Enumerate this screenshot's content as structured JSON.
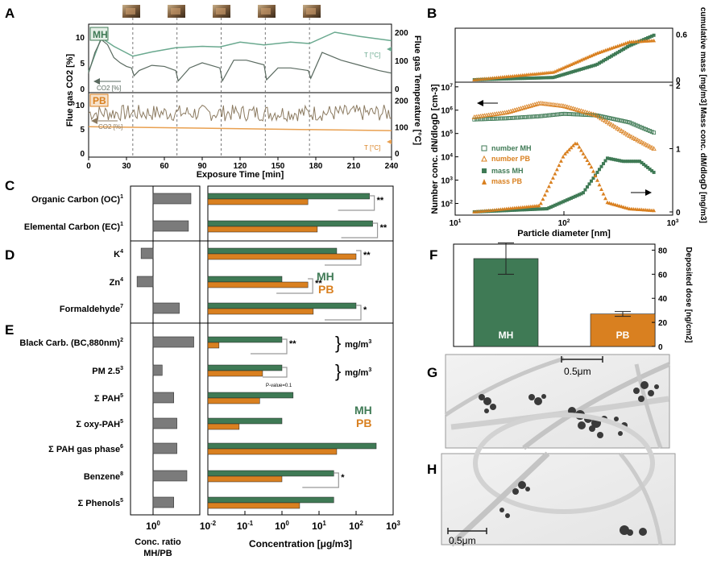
{
  "panel_letters": {
    "A": "A",
    "B": "B",
    "C": "C",
    "D": "D",
    "E": "E",
    "F": "F",
    "G": "G",
    "H": "H"
  },
  "colors": {
    "MH": "#3f7a55",
    "PB": "#d98020",
    "MH_temp": "#6aa98f",
    "PB_temp": "#e9a050",
    "flue": "#5a6a60",
    "flue_pb": "#8b7a60",
    "grey": "#7b7b7b"
  },
  "panel_A": {
    "ylabel_left": "Flue gas CO2 [%]",
    "ylabel_right": "Flue gas Temperature [°C]",
    "xlabel": "Exposure Time [min]",
    "xticks": [
      "0",
      "30",
      "60",
      "90",
      "120",
      "150",
      "180",
      "210",
      "240"
    ],
    "mh_label": "MH",
    "pb_label": "PB",
    "co2_label": "CO2 [%]",
    "temp_label": "T [°C]",
    "left_ticks_top": [
      "0",
      "5",
      "10"
    ],
    "left_ticks_bot": [
      "0",
      "5",
      "10"
    ],
    "right_ticks_top": [
      "0",
      "100",
      "200"
    ],
    "right_ticks_bot": [
      "0",
      "100",
      "200"
    ],
    "chart_data": {
      "type": "line",
      "xlim": [
        0,
        240
      ],
      "mh_refuel_times": [
        35,
        70,
        105,
        140,
        175
      ],
      "series": [
        {
          "name": "MH CO2",
          "x": [
            0,
            5,
            10,
            15,
            20,
            25,
            30,
            34,
            36,
            40,
            50,
            60,
            69,
            71,
            80,
            90,
            104,
            106,
            115,
            125,
            139,
            141,
            150,
            160,
            174,
            176,
            185,
            200,
            215,
            230,
            240
          ],
          "y": [
            3,
            7,
            9.5,
            8.5,
            6,
            5,
            4.3,
            4,
            2.5,
            3.5,
            4.5,
            4.3,
            3.5,
            1.5,
            4,
            5,
            4,
            1.5,
            5.5,
            5.5,
            4.6,
            1.7,
            4,
            4,
            3.5,
            2,
            7,
            5.5,
            4.5,
            3.5,
            3
          ]
        },
        {
          "name": "MH T",
          "x": [
            0,
            10,
            20,
            35,
            50,
            69,
            90,
            104,
            120,
            139,
            160,
            175,
            195,
            215,
            240
          ],
          "y": [
            60,
            180,
            150,
            115,
            130,
            145,
            150,
            148,
            165,
            155,
            165,
            160,
            200,
            185,
            170
          ]
        },
        {
          "name": "PB CO2",
          "y_mean": 8.5,
          "y_range": [
            6,
            10
          ]
        },
        {
          "name": "PB T",
          "x": [
            0,
            240
          ],
          "y": [
            100,
            85
          ]
        }
      ]
    }
  },
  "panel_B": {
    "top_ylabel": "cumulative mass [mg/m3]",
    "top_yticks": [
      "0",
      "0.6"
    ],
    "left_ylabel": "Number conc. dN/dlogD [cm-3]",
    "right_ylabel": "Mass conc. dM/dlogD [mg/m3]",
    "xlabel": "Particle diameter [nm]",
    "xticks": [
      "10",
      "100",
      "1000"
    ],
    "left_ticks": [
      "10",
      "10",
      "10",
      "10",
      "10",
      "10"
    ],
    "left_exps": [
      "2",
      "3",
      "4",
      "5",
      "6",
      "7"
    ],
    "right_ticks": [
      "0",
      "1",
      "2"
    ],
    "legend": [
      "number MH",
      "number PB",
      "mass MH",
      "mass PB"
    ],
    "chart_data": {
      "type": "scatter",
      "x_scale": "log",
      "xlim": [
        10,
        1000
      ],
      "series": [
        {
          "name": "number MH",
          "x": [
            15,
            30,
            60,
            100,
            200,
            400,
            700
          ],
          "y": [
            400000,
            450000,
            550000,
            700000,
            600000,
            300000,
            100000
          ]
        },
        {
          "name": "number PB",
          "x": [
            15,
            30,
            60,
            100,
            200,
            400,
            700
          ],
          "y": [
            500000,
            800000,
            2000000,
            1500000,
            600000,
            80000,
            20000
          ]
        },
        {
          "name": "mass MH",
          "x": [
            15,
            70,
            150,
            250,
            350,
            500,
            700
          ],
          "y": [
            0,
            0.05,
            0.3,
            0.85,
            0.8,
            0.8,
            0.6
          ]
        },
        {
          "name": "mass PB",
          "x": [
            15,
            60,
            100,
            130,
            180,
            250,
            400,
            700
          ],
          "y": [
            0,
            0.1,
            0.9,
            1.1,
            0.7,
            0.15,
            0.05,
            0.02
          ]
        },
        {
          "name": "cumulative MH",
          "x": [
            15,
            80,
            200,
            400,
            700
          ],
          "y": [
            0,
            0.03,
            0.2,
            0.45,
            0.6
          ]
        },
        {
          "name": "cumulative PB",
          "x": [
            15,
            80,
            200,
            400,
            700
          ],
          "y": [
            0,
            0.1,
            0.35,
            0.5,
            0.52
          ]
        }
      ]
    }
  },
  "panel_C": {
    "rows": [
      {
        "label": "Organic Carbon (OC)",
        "sup": "1",
        "ratio": 45,
        "mh": 230,
        "pb": 5,
        "sig": "**"
      },
      {
        "label": "Elemental Carbon (EC)",
        "sup": "1",
        "ratio": 35,
        "mh": 280,
        "pb": 9,
        "sig": "**"
      }
    ]
  },
  "panel_D": {
    "rows": [
      {
        "label": "K",
        "sup": "4",
        "ratio": 0.3,
        "mh": 30,
        "pb": 100,
        "sig": "**"
      },
      {
        "label": "Zn",
        "sup": "4",
        "ratio": 0.2,
        "mh": 1,
        "pb": 5,
        "sig": "**"
      },
      {
        "label": "Formaldehyde",
        "sup": "7",
        "ratio": 14,
        "mh": 100,
        "pb": 7,
        "sig": "*"
      }
    ],
    "mh_label": "MH",
    "pb_label": "PB"
  },
  "panel_E": {
    "rows": [
      {
        "label": "Black Carb. (BC,880nm)",
        "sup": "2",
        "ratio": 60,
        "mh": 1,
        "pb": 0.02,
        "sig": "**",
        "unit": "mg/m3"
      },
      {
        "label": "PM 2.5",
        "sup": "3",
        "ratio": 2.5,
        "mh": 1,
        "pb": 0.3,
        "sig": "",
        "unit": "mg/m3",
        "note": "P-value=0.1"
      },
      {
        "label": "Σ PAH",
        "sup": "5",
        "ratio": 8,
        "mh": 2,
        "pb": 0.25,
        "sig": ""
      },
      {
        "label": "Σ oxy-PAH",
        "sup": "5",
        "ratio": 11,
        "mh": 1,
        "pb": 0.07,
        "sig": ""
      },
      {
        "label": "Σ PAH gas phase",
        "sup": "6",
        "ratio": 11,
        "mh": 350,
        "pb": 30,
        "sig": ""
      },
      {
        "label": "Benzene",
        "sup": "8",
        "ratio": 30,
        "mh": 25,
        "pb": 1,
        "sig": "*"
      },
      {
        "label": "Σ Phenols",
        "sup": "5",
        "ratio": 8,
        "mh": 25,
        "pb": 3,
        "sig": ""
      }
    ],
    "mh_label": "MH",
    "pb_label": "PB"
  },
  "axes_CDE": {
    "ratio_xlabel": "Conc. ratio MH/PB",
    "ratio_tick": "10",
    "ratio_tick_exp": "0",
    "conc_xlabel": "Concentration [μg/m3]",
    "conc_ticks": [
      "10",
      "10",
      "10",
      "10",
      "10",
      "10"
    ],
    "conc_exps": [
      "-2",
      "-1",
      "0",
      "1",
      "2",
      "3"
    ]
  },
  "panel_F": {
    "ylabel": "Deposited dose [ng/cm2]",
    "yticks": [
      "0",
      "20",
      "40",
      "60",
      "80"
    ],
    "chart_data": {
      "type": "bar",
      "categories": [
        "MH",
        "PB"
      ],
      "values": [
        73,
        27
      ],
      "errors": [
        13,
        2
      ],
      "ylim": [
        0,
        85
      ]
    }
  },
  "panel_G": {
    "scale": "0.5μm"
  },
  "panel_H": {
    "scale": "0.5μm"
  }
}
